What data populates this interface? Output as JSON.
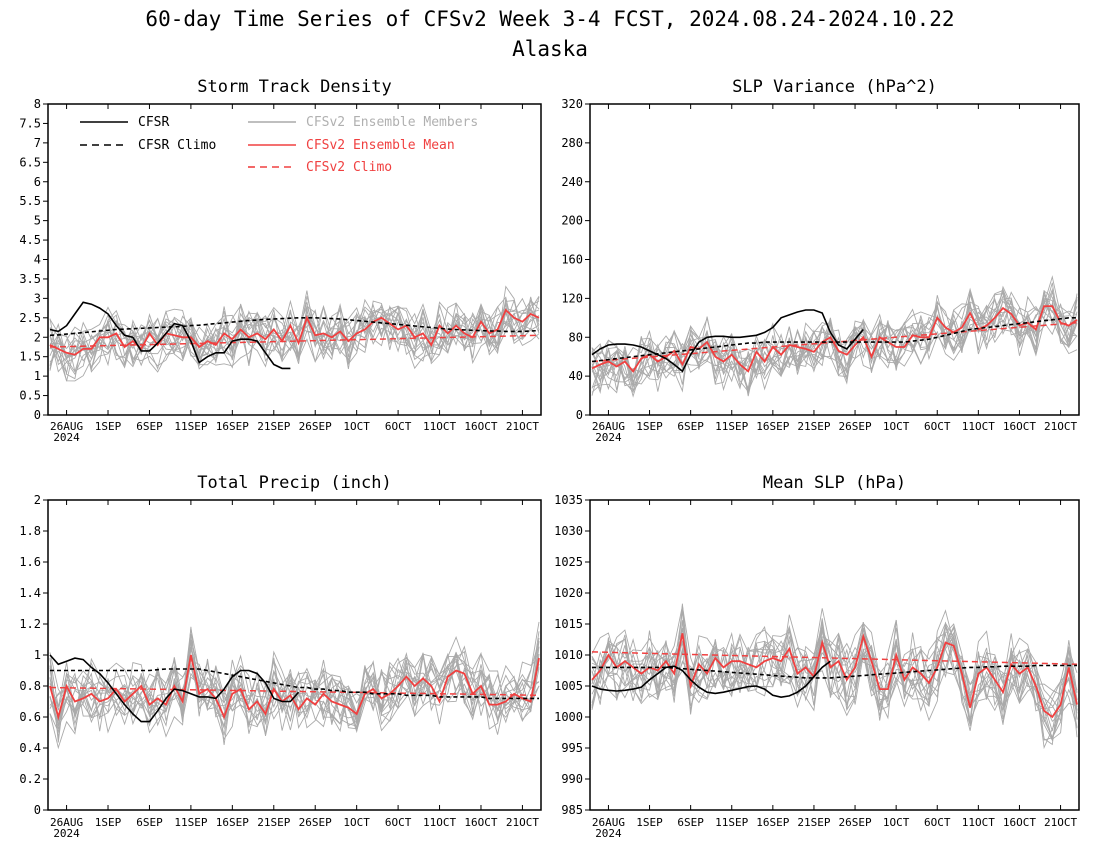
{
  "title": "60-day Time Series of CFSv2 Week 3-4 FCST, 2024.08.24-2024.10.22",
  "subtitle": "Alaska",
  "colors": {
    "cfsr": "#000000",
    "members": "#aaaaaa",
    "ens_mean": "#f04040",
    "cfsv2_climo": "#f04040",
    "frame": "#000000"
  },
  "legend": [
    {
      "label": "CFSR",
      "color": "#000000",
      "dash": false
    },
    {
      "label": "CFSR Climo",
      "color": "#000000",
      "dash": true
    },
    {
      "label": "CFSv2 Ensemble Members",
      "color": "#aaaaaa",
      "dash": false
    },
    {
      "label": "CFSv2 Ensemble Mean",
      "color": "#f04040",
      "dash": false
    },
    {
      "label": "CFSv2 Climo",
      "color": "#f04040",
      "dash": true
    }
  ],
  "chart_data": [
    {
      "type": "line",
      "id": "storm",
      "title": "Storm Track Density",
      "x_tick_labels": [
        "26AUG",
        "1SEP",
        "6SEP",
        "11SEP",
        "16SEP",
        "21SEP",
        "26SEP",
        "1OCT",
        "6OCT",
        "11OCT",
        "16OCT",
        "21OCT"
      ],
      "x_year_label": "2024",
      "ylim": [
        0,
        8
      ],
      "y_ticks": [
        "0",
        "0.5",
        "1",
        "1.5",
        "2",
        "2.5",
        "3",
        "3.5",
        "4",
        "4.5",
        "5",
        "5.5",
        "6",
        "6.5",
        "7",
        "7.5",
        "8"
      ],
      "cfsr": [
        2.2,
        2.15,
        2.3,
        2.6,
        2.9,
        2.85,
        2.75,
        2.6,
        2.3,
        2.05,
        2.0,
        1.65,
        1.65,
        1.85,
        2.1,
        2.35,
        2.3,
        1.9,
        1.35,
        1.5,
        1.6,
        1.6,
        1.9,
        1.95,
        1.95,
        1.9,
        1.6,
        1.3,
        1.2,
        1.2
      ],
      "cfsr_climo": [
        2.05,
        2.06,
        2.08,
        2.1,
        2.12,
        2.14,
        2.16,
        2.18,
        2.2,
        2.21,
        2.22,
        2.23,
        2.24,
        2.25,
        2.26,
        2.27,
        2.28,
        2.3,
        2.31,
        2.33,
        2.35,
        2.37,
        2.39,
        2.41,
        2.43,
        2.44,
        2.46,
        2.47,
        2.48,
        2.49,
        2.5,
        2.5,
        2.5,
        2.49,
        2.48,
        2.47,
        2.45,
        2.43,
        2.41,
        2.39,
        2.37,
        2.35,
        2.33,
        2.31,
        2.29,
        2.27,
        2.25,
        2.23,
        2.21,
        2.2,
        2.19,
        2.18,
        2.17,
        2.16,
        2.16,
        2.15,
        2.15,
        2.15,
        2.16,
        2.17
      ],
      "ens_mean": [
        1.8,
        1.7,
        1.6,
        1.55,
        1.7,
        1.7,
        2.0,
        2.0,
        2.1,
        1.75,
        1.9,
        1.7,
        2.1,
        1.8,
        2.1,
        2.05,
        2.0,
        2.0,
        1.75,
        1.9,
        1.8,
        2.1,
        1.95,
        2.2,
        2.0,
        2.1,
        1.95,
        2.2,
        1.9,
        2.3,
        1.85,
        2.5,
        2.05,
        2.1,
        2.0,
        2.15,
        1.9,
        2.1,
        2.2,
        2.4,
        2.5,
        2.35,
        2.2,
        2.3,
        2.0,
        2.1,
        1.8,
        2.3,
        2.1,
        2.3,
        2.1,
        2.0,
        2.4,
        2.1,
        2.2,
        2.7,
        2.5,
        2.4,
        2.6,
        2.5
      ],
      "cfsv2_climo_range": [
        1.75,
        2.05
      ],
      "member_seed": 11,
      "member_spread": 0.55
    },
    {
      "type": "line",
      "id": "slp_var",
      "title": "SLP Variance (hPa^2)",
      "x_tick_labels": [
        "26AUG",
        "1SEP",
        "6SEP",
        "11SEP",
        "16SEP",
        "21SEP",
        "26SEP",
        "1OCT",
        "6OCT",
        "11OCT",
        "16OCT",
        "21OCT"
      ],
      "x_year_label": "2024",
      "ylim": [
        0,
        320
      ],
      "y_ticks": [
        "0",
        "40",
        "80",
        "120",
        "160",
        "200",
        "240",
        "280",
        "320"
      ],
      "cfsr": [
        62,
        68,
        72,
        73,
        73,
        72,
        70,
        66,
        62,
        58,
        52,
        45,
        62,
        75,
        80,
        81,
        81,
        80,
        80,
        81,
        82,
        85,
        90,
        100,
        103,
        106,
        108,
        108,
        105,
        85,
        72,
        68,
        78,
        88
      ],
      "cfsr_climo": [
        55,
        56,
        57,
        58,
        59,
        60,
        61,
        62,
        63,
        64,
        65,
        66,
        67,
        68,
        69,
        70,
        71,
        72,
        73,
        74,
        74,
        75,
        75,
        75,
        75,
        75,
        75,
        75,
        75,
        75,
        75,
        75,
        75,
        75,
        75,
        75,
        75,
        75,
        75,
        76,
        77,
        78,
        80,
        82,
        84,
        86,
        88,
        89,
        90,
        91,
        92,
        93,
        94,
        95,
        96,
        97,
        98,
        99,
        100,
        100
      ],
      "ens_mean": [
        48,
        52,
        55,
        50,
        55,
        45,
        58,
        62,
        55,
        60,
        66,
        52,
        70,
        68,
        75,
        60,
        55,
        62,
        52,
        45,
        65,
        55,
        70,
        62,
        72,
        70,
        68,
        65,
        75,
        80,
        66,
        62,
        72,
        80,
        60,
        80,
        75,
        70,
        70,
        82,
        80,
        80,
        100,
        90,
        85,
        90,
        105,
        88,
        92,
        100,
        110,
        104,
        92,
        95,
        88,
        112,
        112,
        95,
        92,
        98
      ],
      "cfsv2_climo_range": [
        55,
        95
      ],
      "member_seed": 23,
      "member_spread": 22
    },
    {
      "type": "line",
      "id": "precip",
      "title": "Total Precip (inch)",
      "x_tick_labels": [
        "26AUG",
        "1SEP",
        "6SEP",
        "11SEP",
        "16SEP",
        "21SEP",
        "26SEP",
        "1OCT",
        "6OCT",
        "11OCT",
        "16OCT",
        "21OCT"
      ],
      "x_year_label": "2024",
      "ylim": [
        0,
        2
      ],
      "y_ticks": [
        "0",
        "0.2",
        "0.4",
        "0.6",
        "0.8",
        "1",
        "1.2",
        "1.4",
        "1.6",
        "1.8",
        "2"
      ],
      "cfsr": [
        1.0,
        0.94,
        0.96,
        0.98,
        0.97,
        0.92,
        0.88,
        0.82,
        0.75,
        0.68,
        0.62,
        0.57,
        0.57,
        0.64,
        0.72,
        0.78,
        0.77,
        0.75,
        0.73,
        0.73,
        0.72,
        0.78,
        0.86,
        0.9,
        0.9,
        0.88,
        0.82,
        0.72,
        0.7,
        0.7,
        0.76
      ],
      "cfsr_climo": [
        0.9,
        0.9,
        0.9,
        0.9,
        0.9,
        0.9,
        0.9,
        0.9,
        0.9,
        0.9,
        0.9,
        0.9,
        0.9,
        0.905,
        0.91,
        0.91,
        0.91,
        0.91,
        0.91,
        0.9,
        0.89,
        0.88,
        0.87,
        0.86,
        0.85,
        0.84,
        0.83,
        0.82,
        0.81,
        0.8,
        0.79,
        0.79,
        0.78,
        0.78,
        0.77,
        0.77,
        0.76,
        0.76,
        0.76,
        0.75,
        0.75,
        0.75,
        0.75,
        0.74,
        0.74,
        0.74,
        0.74,
        0.73,
        0.73,
        0.73,
        0.73,
        0.73,
        0.73,
        0.72,
        0.72,
        0.72,
        0.72,
        0.72,
        0.72,
        0.72
      ],
      "ens_mean": [
        0.8,
        0.6,
        0.8,
        0.7,
        0.72,
        0.75,
        0.7,
        0.72,
        0.78,
        0.7,
        0.75,
        0.8,
        0.68,
        0.72,
        0.68,
        0.8,
        0.7,
        1.0,
        0.75,
        0.78,
        0.72,
        0.6,
        0.75,
        0.78,
        0.65,
        0.7,
        0.62,
        0.78,
        0.7,
        0.74,
        0.65,
        0.72,
        0.68,
        0.75,
        0.7,
        0.68,
        0.66,
        0.62,
        0.75,
        0.78,
        0.72,
        0.75,
        0.8,
        0.86,
        0.8,
        0.85,
        0.8,
        0.7,
        0.86,
        0.9,
        0.88,
        0.75,
        0.8,
        0.68,
        0.68,
        0.7,
        0.75,
        0.72,
        0.7,
        0.98
      ],
      "cfsv2_climo_range": [
        0.79,
        0.74
      ],
      "member_seed": 37,
      "member_spread": 0.16
    },
    {
      "type": "line",
      "id": "mean_slp",
      "title": "Mean SLP (hPa)",
      "x_tick_labels": [
        "26AUG",
        "1SEP",
        "6SEP",
        "11SEP",
        "16SEP",
        "21SEP",
        "26SEP",
        "1OCT",
        "6OCT",
        "11OCT",
        "16OCT",
        "21OCT"
      ],
      "x_year_label": "2024",
      "ylim": [
        985,
        1035
      ],
      "y_ticks": [
        "985",
        "990",
        "995",
        "1000",
        "1005",
        "1010",
        "1015",
        "1020",
        "1025",
        "1030",
        "1035"
      ],
      "cfsr": [
        1005,
        1004.5,
        1004.3,
        1004.2,
        1004.3,
        1004.5,
        1004.8,
        1006,
        1007,
        1008,
        1008.2,
        1007.5,
        1006,
        1004.8,
        1004,
        1003.8,
        1004,
        1004.3,
        1004.6,
        1004.9,
        1005,
        1004.5,
        1003.5,
        1003.2,
        1003.4,
        1004,
        1005,
        1006.5,
        1008,
        1009
      ],
      "cfsr_climo": [
        1008,
        1008,
        1008,
        1008,
        1008,
        1008,
        1008,
        1008,
        1008,
        1008,
        1007.9,
        1007.8,
        1007.7,
        1007.6,
        1007.5,
        1007.4,
        1007.3,
        1007.2,
        1007.1,
        1007,
        1006.9,
        1006.8,
        1006.7,
        1006.6,
        1006.5,
        1006.4,
        1006.3,
        1006.3,
        1006.3,
        1006.3,
        1006.4,
        1006.5,
        1006.6,
        1006.7,
        1006.8,
        1006.9,
        1007,
        1007.1,
        1007.2,
        1007.3,
        1007.4,
        1007.5,
        1007.6,
        1007.7,
        1007.8,
        1007.9,
        1008,
        1008,
        1008.1,
        1008.1,
        1008.2,
        1008.2,
        1008.2,
        1008.2,
        1008.3,
        1008.3,
        1008.3,
        1008.3,
        1008.3,
        1008.3
      ],
      "ens_mean": [
        1006,
        1007.5,
        1010,
        1008,
        1009,
        1008,
        1007,
        1008,
        1007.5,
        1009,
        1007,
        1013.5,
        1005,
        1008.5,
        1007,
        1009.5,
        1008,
        1009,
        1009,
        1008.5,
        1008,
        1009,
        1009.5,
        1009,
        1011,
        1007,
        1008,
        1006.5,
        1012,
        1008,
        1009,
        1006,
        1008,
        1013,
        1009,
        1004.5,
        1004.5,
        1010,
        1006,
        1008,
        1007,
        1005.5,
        1008,
        1012,
        1011.5,
        1007,
        1001.5,
        1007,
        1008,
        1006,
        1004,
        1008.5,
        1007,
        1008,
        1005,
        1001,
        1000,
        1002,
        1008,
        1002
      ],
      "cfsv2_climo_range": [
        1010.5,
        1008.5
      ],
      "member_seed": 53,
      "member_spread": 4.2
    }
  ]
}
